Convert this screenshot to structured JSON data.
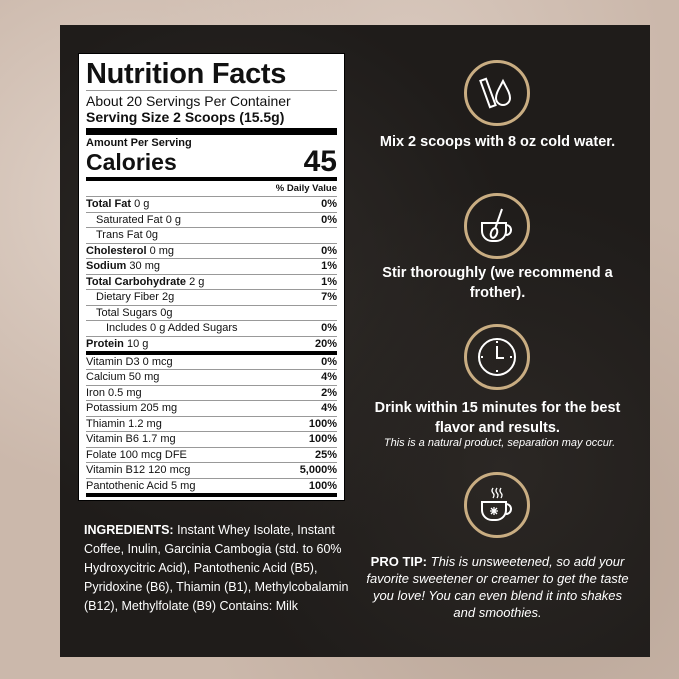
{
  "label": {
    "title": "Nutrition Facts",
    "servings": "About 20 Servings Per Container",
    "serving_size": "Serving Size 2 Scoops (15.5g)",
    "amount_per_serving": "Amount Per Serving",
    "calories_label": "Calories",
    "calories": "45",
    "daily_value_header": "% Daily Value",
    "rows": [
      {
        "name": "Total Fat",
        "amount": "0 g",
        "dv": "0%"
      },
      {
        "name": "Saturated Fat 0 g",
        "amount": "",
        "dv": "0%"
      },
      {
        "name": "Trans Fat 0g",
        "amount": "",
        "dv": ""
      },
      {
        "name": "Cholesterol",
        "amount": "0 mg",
        "dv": "0%"
      },
      {
        "name": "Sodium",
        "amount": "30 mg",
        "dv": "1%"
      },
      {
        "name": "Total Carbohydrate",
        "amount": "2 g",
        "dv": "1%"
      },
      {
        "name": "Dietary Fiber 2g",
        "amount": "",
        "dv": "7%"
      },
      {
        "name": "Total Sugars 0g",
        "amount": "",
        "dv": ""
      },
      {
        "name": "Includes 0 g Added Sugars",
        "amount": "",
        "dv": "0%"
      },
      {
        "name": "Protein",
        "amount": "10 g",
        "dv": "20%"
      }
    ],
    "vitamins": [
      {
        "name": "Vitamin D3 0 mcg",
        "dv": "0%"
      },
      {
        "name": "Calcium 50 mg",
        "dv": "4%"
      },
      {
        "name": "Iron 0.5 mg",
        "dv": "2%"
      },
      {
        "name": "Potassium 205 mg",
        "dv": "4%"
      },
      {
        "name": "Thiamin 1.2 mg",
        "dv": "100%"
      },
      {
        "name": "Vitamin B6 1.7 mg",
        "dv": "100%"
      },
      {
        "name": "Folate 100 mcg DFE",
        "dv": "25%"
      },
      {
        "name": "Vitamin B12 120 mcg",
        "dv": "5,000%"
      },
      {
        "name": "Pantothenic Acid 5 mg",
        "dv": "100%"
      }
    ]
  },
  "ingredients": {
    "heading": "INGREDIENTS:",
    "text": "Instant Whey Isolate, Instant Coffee, Inulin, Garcinia Cambogia (std. to 60% Hydroxycitric Acid), Pantothenic Acid (B5), Pyridoxine (B6), Thiamin (B1), Methylcobalamin (B12), Methylfolate (B9) Contains: Milk"
  },
  "steps": [
    {
      "icon": "scoop-water-drop-icon",
      "text": "Mix 2 scoops with 8 oz cold water."
    },
    {
      "icon": "cup-spoon-icon",
      "text": "Stir thoroughly (we recommend a frother)."
    },
    {
      "icon": "clock-icon",
      "text": "Drink within 15 minutes for the best flavor and results.",
      "note": "This is a natural product, separation may occur."
    },
    {
      "icon": "iced-cup-icon"
    }
  ],
  "pro_tip": {
    "heading": "PRO TIP:",
    "text": "This is unsweetened, so add your favorite sweetener or creamer to get the taste you love! You can even blend it into shakes and smoothies."
  },
  "colors": {
    "panel": "#1f1c1a",
    "accent": "#c9ad82",
    "background": "#cbb8ab"
  }
}
